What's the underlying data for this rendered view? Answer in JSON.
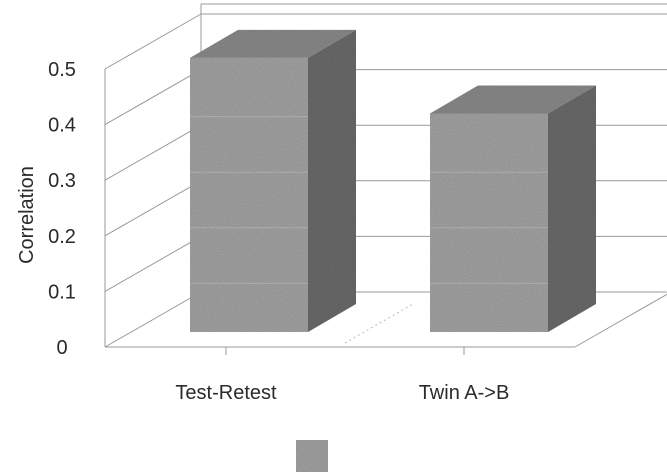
{
  "chart_data": {
    "type": "bar",
    "categories": [
      "Test-Retest",
      "Twin A->B"
    ],
    "values": [
      0.52,
      0.42
    ],
    "ylabel": "Correlation",
    "xlabel": "",
    "ylim": [
      0,
      0.5
    ],
    "yticks": [
      "0",
      "0.1",
      "0.2",
      "0.3",
      "0.4",
      "0.5"
    ],
    "grid": true,
    "legend_position": "bottom-center",
    "projection": "3d",
    "colors": {
      "bar_front": "#a6a6a6",
      "bar_side": "#6d6d6d",
      "bar_top": "#8c8c8c",
      "axis": "#999999"
    }
  }
}
